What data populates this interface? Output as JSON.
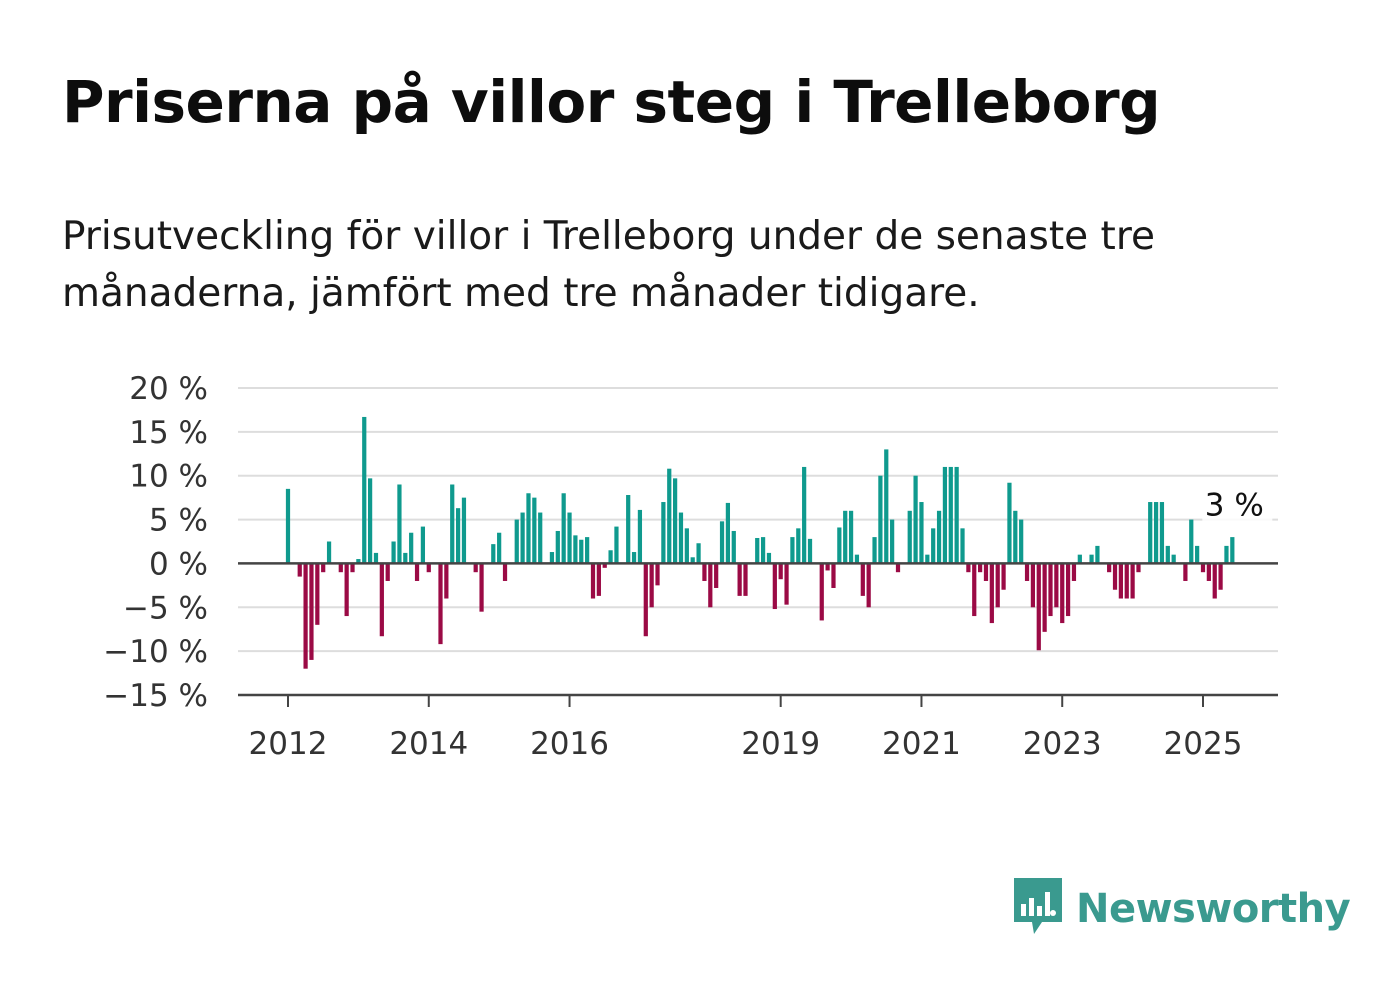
{
  "header": {
    "title": "Priserna på villor steg i Trelleborg",
    "subtitle": "Prisutveckling för villor i Trelleborg under de senaste tre månaderna, jämfört med tre månader tidigare."
  },
  "brand": {
    "name": "Newsworthy",
    "icon": "newsworthy-chart-bubble-icon",
    "color": "#3a9a8f"
  },
  "chart_data": {
    "type": "bar",
    "x_start": "2012-01",
    "x_step": "month",
    "values": [
      8.5,
      0,
      -1.5,
      -12,
      -11,
      -7,
      -1,
      2.5,
      0,
      -1,
      -6,
      -1,
      0.5,
      16.7,
      9.7,
      1.2,
      -8.3,
      -2,
      2.5,
      9,
      1.2,
      3.5,
      -2,
      4.2,
      -1,
      0,
      -9.2,
      -4,
      9,
      6.3,
      7.5,
      0,
      -1,
      -5.5,
      0,
      2.2,
      3.5,
      -2,
      0,
      5,
      5.8,
      8,
      7.5,
      5.8,
      0,
      1.3,
      3.7,
      8,
      5.8,
      3.2,
      2.7,
      3,
      -4,
      -3.7,
      -0.5,
      1.5,
      4.2,
      0,
      7.8,
      1.3,
      6.1,
      -8.3,
      -5,
      -2.5,
      7,
      10.8,
      9.7,
      5.8,
      4,
      0.7,
      2.3,
      -2,
      -5,
      -2.8,
      4.8,
      6.9,
      3.7,
      -3.7,
      -3.7,
      0,
      2.9,
      3,
      1.2,
      -5.2,
      -1.8,
      -4.7,
      3,
      4,
      11,
      2.8,
      0,
      -6.5,
      -0.8,
      -2.8,
      4.1,
      6,
      6,
      1,
      -3.7,
      -5,
      3,
      10,
      13,
      5,
      -1,
      0,
      6,
      10,
      7,
      1,
      4,
      6,
      11,
      11,
      11,
      4,
      -1,
      -6,
      -1,
      -2,
      -6.8,
      -5,
      -3,
      9.2,
      6,
      5,
      -2,
      -5,
      -9.9,
      -7.8,
      -6,
      -5,
      -6.8,
      -6,
      -2,
      1,
      0,
      1,
      2,
      0,
      -1,
      -3,
      -4,
      -4,
      -4,
      -1,
      0,
      7,
      7,
      7,
      2,
      1,
      0,
      -2,
      5,
      2,
      -1,
      -2,
      -4,
      -3,
      2,
      3
    ],
    "y_ticks": [
      20,
      15,
      10,
      5,
      0,
      -5,
      -10,
      -15
    ],
    "y_tick_labels": [
      "20 %",
      "15 %",
      "10 %",
      "5 %",
      "0 %",
      "−5 %",
      "−10 %",
      "−15 %"
    ],
    "x_ticks": [
      2012,
      2014,
      2016,
      2019,
      2021,
      2023,
      2025
    ],
    "x_tick_labels": [
      "2012",
      "2014",
      "2016",
      "2019",
      "2021",
      "2023",
      "2025"
    ],
    "ylim": [
      -15,
      20
    ],
    "colors": {
      "positive": "#0f9a8e",
      "negative": "#9b0a45",
      "grid": "#dddddd",
      "axis": "#444444"
    },
    "grid": true,
    "annotation": {
      "label": "3 %",
      "value": 3
    }
  }
}
